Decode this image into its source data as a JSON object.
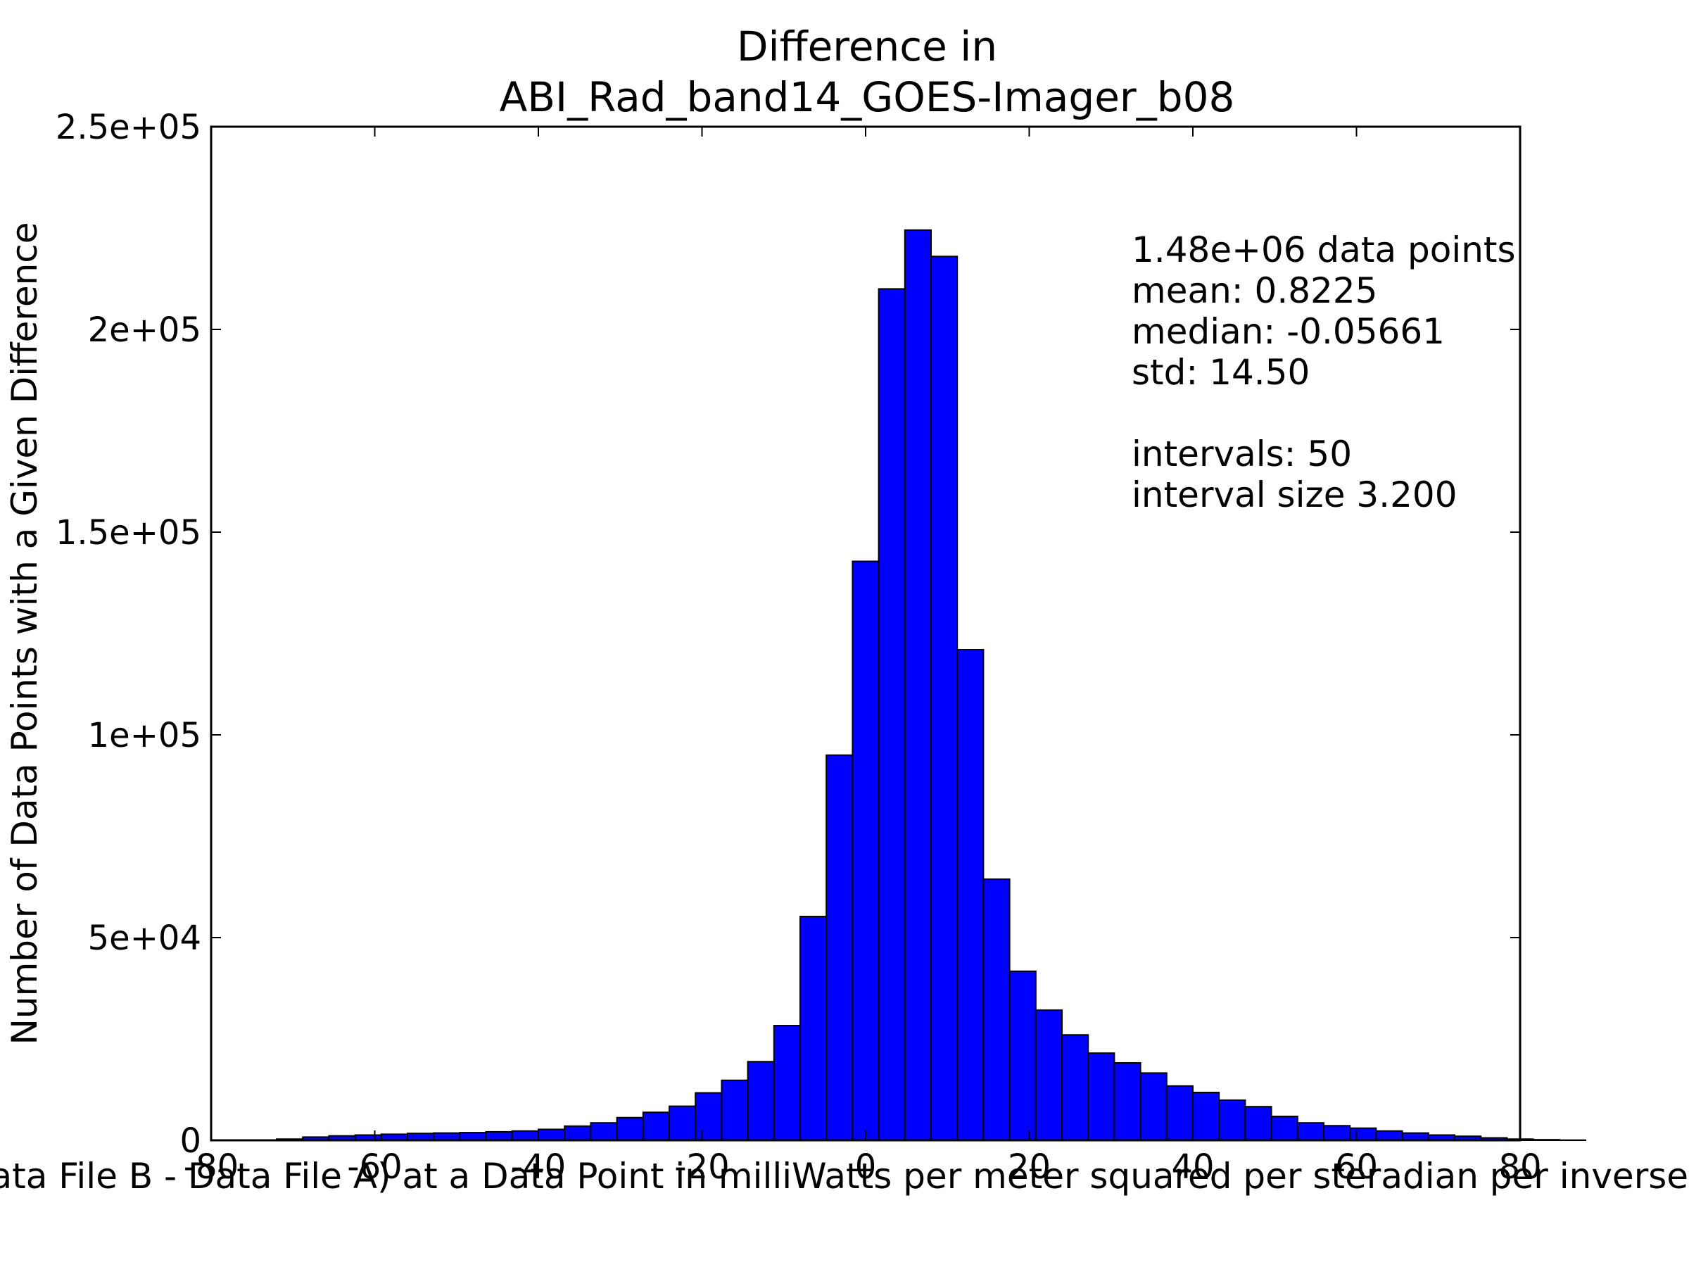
{
  "chart_data": {
    "type": "bar",
    "title_line1": "Difference in",
    "title_line2": "ABI_Rad_band14_GOES-Imager_b08",
    "xlabel": "Value of (Data File B - Data File A) at a Data Point in milliWatts per meter squared per steradian per inverse centimeter",
    "ylabel": "Number of Data Points with a Given Difference",
    "xlim": [
      -80,
      80
    ],
    "ylim": [
      0,
      250000
    ],
    "x_ticks": [
      -80,
      -60,
      -40,
      -20,
      0,
      20,
      40,
      60,
      80
    ],
    "x_tick_labels": [
      "-80",
      "-60",
      "-40",
      "-20",
      "0",
      "20",
      "40",
      "60",
      "80"
    ],
    "y_ticks": [
      0,
      50000,
      100000,
      150000,
      200000,
      250000
    ],
    "y_tick_labels": [
      "0",
      "5e+04",
      "1e+05",
      "1.5e+05",
      "2e+05",
      "2.5e+05"
    ],
    "bin_start": -72.0,
    "bin_width": 3.2,
    "values": [
      300,
      800,
      1100,
      1300,
      1500,
      1700,
      1800,
      1900,
      2100,
      2300,
      2700,
      3500,
      4300,
      5600,
      6900,
      8400,
      11700,
      14800,
      19400,
      28300,
      55200,
      95000,
      142800,
      210000,
      224500,
      218000,
      121000,
      64400,
      41700,
      32100,
      26000,
      21500,
      19100,
      16600,
      13400,
      11800,
      9900,
      8300,
      5900,
      4300,
      3600,
      3000,
      2300,
      1800,
      1300,
      1000,
      600,
      300,
      150,
      50
    ],
    "bar_color": "#0000ff",
    "grid": false,
    "stats": {
      "line1": "1.48e+06 data points",
      "line2": "mean: 0.8225",
      "line3": "median: -0.05661",
      "line4": "std: 14.50",
      "line5": "intervals: 50",
      "line6": "interval size 3.200"
    }
  }
}
